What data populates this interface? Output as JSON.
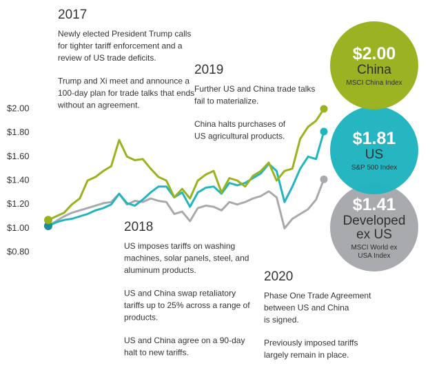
{
  "chart_data": {
    "type": "line",
    "ylim": [
      0.8,
      2.0
    ],
    "yticks": [
      {
        "value": 2.0,
        "label": "$2.00"
      },
      {
        "value": 1.8,
        "label": "$1.80"
      },
      {
        "value": 1.6,
        "label": "$1.60"
      },
      {
        "value": 1.4,
        "label": "$1.40"
      },
      {
        "value": 1.2,
        "label": "$1.20"
      },
      {
        "value": 1.0,
        "label": "$1.00"
      },
      {
        "value": 0.8,
        "label": "$0.80"
      }
    ],
    "series": [
      {
        "name": "China",
        "index": "MSCI China Index",
        "color": "#9ab21e",
        "values": [
          1.07,
          1.1,
          1.13,
          1.2,
          1.25,
          1.4,
          1.43,
          1.48,
          1.52,
          1.74,
          1.6,
          1.57,
          1.58,
          1.5,
          1.43,
          1.4,
          1.26,
          1.33,
          1.25,
          1.4,
          1.45,
          1.48,
          1.3,
          1.42,
          1.4,
          1.35,
          1.44,
          1.48,
          1.55,
          1.4,
          1.48,
          1.5,
          1.75,
          1.85,
          1.9,
          2.0
        ],
        "value_labels": [
          null,
          null,
          null,
          null,
          null,
          null,
          null,
          null,
          null,
          null,
          null,
          null,
          null,
          null,
          null,
          null,
          null,
          null,
          null,
          null,
          null,
          null,
          null,
          null,
          null,
          null,
          null,
          null,
          null,
          null,
          null,
          null,
          null,
          null,
          null,
          "$2.00"
        ]
      },
      {
        "name": "US",
        "index": "S&P 500 Index",
        "color": "#21b5c0",
        "values": [
          1.02,
          1.05,
          1.07,
          1.08,
          1.1,
          1.12,
          1.15,
          1.17,
          1.2,
          1.29,
          1.21,
          1.19,
          1.24,
          1.3,
          1.35,
          1.35,
          1.26,
          1.3,
          1.18,
          1.3,
          1.34,
          1.35,
          1.29,
          1.38,
          1.36,
          1.38,
          1.42,
          1.46,
          1.54,
          1.48,
          1.22,
          1.35,
          1.5,
          1.6,
          1.58,
          1.81
        ],
        "value_labels": [
          null,
          null,
          null,
          null,
          null,
          null,
          null,
          null,
          null,
          null,
          null,
          null,
          null,
          null,
          null,
          null,
          null,
          null,
          null,
          null,
          null,
          null,
          null,
          null,
          null,
          null,
          null,
          null,
          null,
          null,
          null,
          null,
          null,
          null,
          null,
          "$1.81"
        ]
      },
      {
        "name": "Developed ex US",
        "index": "MSCI World ex USA Index",
        "color": "#a7a9ac",
        "values": [
          1.02,
          1.06,
          1.1,
          1.13,
          1.15,
          1.17,
          1.19,
          1.21,
          1.22,
          1.29,
          1.2,
          1.23,
          1.22,
          1.25,
          1.23,
          1.22,
          1.12,
          1.14,
          1.06,
          1.17,
          1.19,
          1.18,
          1.15,
          1.22,
          1.2,
          1.22,
          1.25,
          1.27,
          1.31,
          1.26,
          1.0,
          1.08,
          1.12,
          1.16,
          1.24,
          1.41
        ],
        "value_labels": [
          null,
          null,
          null,
          null,
          null,
          null,
          null,
          null,
          null,
          null,
          null,
          null,
          null,
          null,
          null,
          null,
          null,
          null,
          null,
          null,
          null,
          null,
          null,
          null,
          null,
          null,
          null,
          null,
          null,
          null,
          null,
          null,
          null,
          null,
          null,
          "$1.41"
        ]
      }
    ],
    "annotations": [
      {
        "year": "2017",
        "paragraphs": [
          [
            "Newly elected President Trump calls",
            "for tighter tariff enforcement and a",
            "review of US trade deficits."
          ],
          [
            "Trump and Xi meet and announce a",
            "100-day plan for trade talks that ends",
            "without an agreement."
          ]
        ]
      },
      {
        "year": "2019",
        "paragraphs": [
          [
            "Further US and China trade talks",
            "fail to materialize."
          ],
          [
            "China halts purchases of",
            "US agricultural products."
          ]
        ]
      },
      {
        "year": "2018",
        "paragraphs": [
          [
            "US imposes tariffs on washing",
            "machines, solar panels, steel, and",
            "aluminum products."
          ],
          [
            "US and China swap retaliatory",
            "tariffs up to 25% across a range of",
            "products."
          ],
          [
            "US and China agree on a 90-day",
            "halt to new tariffs."
          ]
        ]
      },
      {
        "year": "2020",
        "paragraphs": [
          [
            "Phase One Trade Agreement",
            "between US and China",
            "is signed."
          ],
          [
            "Previously imposed tariffs",
            "largely remain in place."
          ]
        ]
      }
    ]
  }
}
